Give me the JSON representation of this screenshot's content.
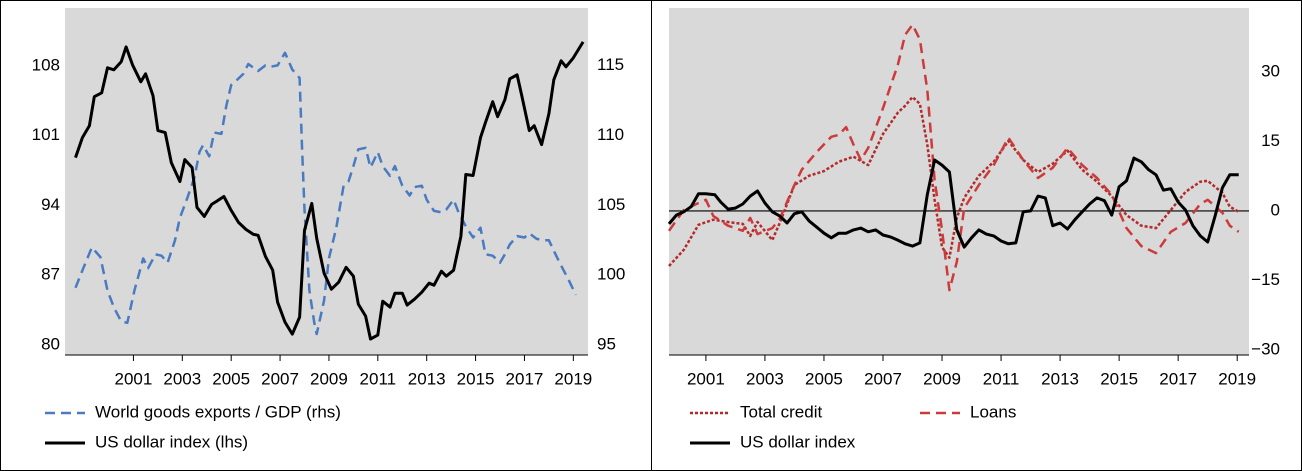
{
  "chart_data": [
    {
      "type": "line",
      "legend": "bottom",
      "background": "#d9d9d9",
      "xlim": [
        1998.2,
        2019.6
      ],
      "xticks": [
        2001,
        2003,
        2005,
        2007,
        2009,
        2011,
        2013,
        2015,
        2017,
        2019
      ],
      "ylim": [
        79,
        113.8
      ],
      "yticks": [
        80,
        87,
        94,
        101,
        108
      ],
      "y2lim": [
        94.3,
        119.1
      ],
      "y2ticks": [
        95,
        100,
        105,
        110,
        115
      ],
      "series": [
        {
          "name": "World goods exports / GDP (rhs)",
          "color": "#4a7bc1",
          "dash": "dashed",
          "axis": "y2",
          "x": [
            1998.63,
            1998.95,
            1999.3,
            1999.65,
            1999.94,
            2000.2,
            2000.5,
            2000.75,
            2001.04,
            2001.4,
            2001.6,
            2001.9,
            2002.15,
            2002.4,
            2002.7,
            2002.9,
            2003.2,
            2003.5,
            2003.7,
            2003.85,
            2004.1,
            2004.3,
            2004.6,
            2004.8,
            2005.0,
            2005.2,
            2005.5,
            2005.7,
            2006.1,
            2006.4,
            2006.6,
            2006.9,
            2007.2,
            2007.5,
            2007.8,
            2007.9,
            2008.0,
            2008.2,
            2008.4,
            2008.5,
            2008.8,
            2009.0,
            2009.3,
            2009.6,
            2009.8,
            2010.0,
            2010.2,
            2010.5,
            2010.7,
            2011.0,
            2011.2,
            2011.5,
            2011.7,
            2012.0,
            2012.3,
            2012.5,
            2012.8,
            2013.0,
            2013.3,
            2013.6,
            2013.8,
            2014.1,
            2014.3,
            2014.6,
            2014.9,
            2015.2,
            2015.4,
            2015.7,
            2016.0,
            2016.2,
            2016.4,
            2016.7,
            2017.0,
            2017.2,
            2017.5,
            2017.8,
            2018.0,
            2018.3,
            2018.5,
            2018.8,
            2019.1
          ],
          "values": [
            99.1,
            100.5,
            102,
            101.3,
            98.9,
            97.7,
            96.7,
            96.6,
            98.9,
            101.2,
            100.5,
            101.5,
            101.4,
            100.9,
            102.5,
            104.1,
            105.5,
            107,
            108.8,
            109.3,
            108.5,
            110.2,
            110.1,
            112.1,
            113.6,
            113.9,
            114.4,
            115.1,
            114.6,
            115,
            114.9,
            115,
            115.9,
            114.7,
            114.1,
            109,
            104.7,
            98.9,
            96.6,
            95.8,
            98.2,
            101.2,
            103.4,
            106.4,
            106.7,
            107.8,
            109,
            109.1,
            107.7,
            108.8,
            107.8,
            107.1,
            107.8,
            106.4,
            105.7,
            106.3,
            106.4,
            105.4,
            104.6,
            104.5,
            104.7,
            105.4,
            104.5,
            103.5,
            102.7,
            103.4,
            101.5,
            101.4,
            100.9,
            101.5,
            102.2,
            102.8,
            102.7,
            103,
            102.6,
            102.5,
            102.5,
            101.4,
            100.7,
            99.7,
            98.6
          ]
        },
        {
          "name": "US dollar index (lhs)",
          "color": "#000000",
          "dash": "solid",
          "x": [
            1998.63,
            1998.91,
            1999.2,
            1999.4,
            1999.7,
            1999.94,
            2000.2,
            2000.5,
            2000.7,
            2000.96,
            2001.3,
            2001.5,
            2001.8,
            2002.0,
            2002.3,
            2002.55,
            2002.9,
            2003.1,
            2003.4,
            2003.6,
            2003.9,
            2004.2,
            2004.4,
            2004.7,
            2005.0,
            2005.3,
            2005.6,
            2005.9,
            2006.1,
            2006.4,
            2006.7,
            2006.9,
            2007.2,
            2007.5,
            2007.8,
            2008.0,
            2008.3,
            2008.5,
            2008.8,
            2009.1,
            2009.4,
            2009.7,
            2010.0,
            2010.2,
            2010.5,
            2010.7,
            2011.0,
            2011.2,
            2011.5,
            2011.7,
            2012.0,
            2012.2,
            2012.5,
            2012.8,
            2013.1,
            2013.3,
            2013.6,
            2013.8,
            2014.1,
            2014.4,
            2014.6,
            2014.9,
            2015.2,
            2015.4,
            2015.7,
            2015.9,
            2016.2,
            2016.4,
            2016.7,
            2016.9,
            2017.2,
            2017.4,
            2017.7,
            2018.0,
            2018.2,
            2018.5,
            2018.7,
            2019.0,
            2019.4
          ],
          "values": [
            98.8,
            100.8,
            102,
            104.9,
            105.3,
            107.8,
            107.6,
            108.4,
            109.9,
            108.1,
            106.4,
            107.2,
            105,
            101.5,
            101.3,
            98.3,
            96.4,
            98.6,
            97.8,
            93.8,
            92.9,
            94.1,
            94.4,
            94.9,
            93.5,
            92.3,
            91.6,
            91.1,
            91,
            88.9,
            87.5,
            84.3,
            82.3,
            81.1,
            82.8,
            91.5,
            94.2,
            90.7,
            87.2,
            85.6,
            86.3,
            87.8,
            86.9,
            84.1,
            82.9,
            80.6,
            81,
            84.4,
            83.8,
            85.2,
            85.2,
            84,
            84.6,
            85.3,
            86.2,
            86,
            87.4,
            86.9,
            87.5,
            90.9,
            97.1,
            97,
            100.8,
            102.3,
            104.4,
            102.9,
            104.6,
            106.7,
            107.1,
            104.9,
            101.5,
            102,
            100.1,
            103.2,
            106.6,
            108.5,
            107.9,
            108.8,
            110.4
          ]
        }
      ]
    },
    {
      "type": "line",
      "legend": "bottom",
      "background": "#d9d9d9",
      "y_axis_side": "right",
      "zero_line": true,
      "xlim": [
        1999.75,
        2019.4
      ],
      "xticks": [
        2001,
        2003,
        2005,
        2007,
        2009,
        2011,
        2013,
        2015,
        2017,
        2019
      ],
      "ylim": [
        -31.1,
        43.8
      ],
      "yticks": [
        {
          "value": -30,
          "label": "−30"
        },
        {
          "value": -15,
          "label": "−15"
        },
        0,
        15,
        30
      ],
      "series": [
        {
          "name": "Total credit",
          "color": "#b22a2a",
          "dash": "dotted",
          "x": [
            1999.75,
            2000.25,
            2000.75,
            2001.25,
            2001.75,
            2002.25,
            2002.5,
            2002.75,
            2003.25,
            2003.5,
            2004.0,
            2004.5,
            2005.0,
            2005.5,
            2006.0,
            2006.5,
            2007.0,
            2007.5,
            2007.75,
            2008.0,
            2008.25,
            2008.5,
            2008.75,
            2009.0,
            2009.25,
            2009.5,
            2009.75,
            2010.25,
            2010.75,
            2011.25,
            2011.75,
            2012.25,
            2012.75,
            2013.25,
            2013.75,
            2014.25,
            2014.75,
            2015.25,
            2015.75,
            2016.25,
            2016.75,
            2017.25,
            2017.75,
            2018.0,
            2018.5,
            2018.75,
            2019.05
          ],
          "values": [
            -11.9,
            -8.4,
            -3,
            -1.9,
            -2.4,
            -2.8,
            -5.4,
            -2.4,
            -6.3,
            -2.6,
            5.6,
            7.6,
            8.6,
            10.6,
            11.7,
            9.9,
            16.6,
            21.2,
            22.7,
            24.6,
            23.1,
            14.3,
            2.4,
            -7.8,
            -10.1,
            -1.5,
            2.8,
            7.6,
            10.6,
            15.1,
            11,
            8.4,
            10.2,
            13,
            8.9,
            6.3,
            3.2,
            -0.9,
            -3.2,
            -3.7,
            0.2,
            4.1,
            6.3,
            6.5,
            3.9,
            0.9,
            -0.2
          ]
        },
        {
          "name": "Loans",
          "color": "#cc3b3b",
          "dash": "dashed",
          "x": [
            1999.75,
            2000.25,
            2000.75,
            2001.0,
            2001.25,
            2001.75,
            2002.25,
            2002.5,
            2002.75,
            2003.25,
            2003.5,
            2004.0,
            2004.25,
            2004.75,
            2005.25,
            2005.5,
            2005.75,
            2006.0,
            2006.25,
            2006.5,
            2007.0,
            2007.5,
            2007.75,
            2008.0,
            2008.25,
            2008.5,
            2008.75,
            2009.0,
            2009.25,
            2009.5,
            2009.75,
            2010.25,
            2010.75,
            2011.25,
            2011.75,
            2012.25,
            2012.75,
            2013.25,
            2013.75,
            2014.25,
            2014.75,
            2015.25,
            2015.75,
            2016.25,
            2016.75,
            2017.25,
            2017.75,
            2018.0,
            2018.5,
            2018.75,
            2019.05
          ],
          "values": [
            -4.3,
            0.2,
            1.7,
            2.4,
            -1.1,
            -3.2,
            -4.3,
            -1.5,
            -5,
            -3.7,
            -1.7,
            5.6,
            8.9,
            12.7,
            16,
            16.4,
            18.1,
            14.3,
            11,
            13.6,
            22.2,
            31.5,
            38,
            40.2,
            37,
            26.1,
            6.7,
            -4.1,
            -17.1,
            -11,
            0.6,
            5.6,
            9.9,
            15.8,
            11,
            7.1,
            9.3,
            13.6,
            9.9,
            7.1,
            3.5,
            -3.7,
            -7.6,
            -9.1,
            -4.5,
            -2.6,
            1.5,
            2.4,
            -0.4,
            -3.2,
            -4.5
          ]
        },
        {
          "name": "US dollar index",
          "color": "#000000",
          "dash": "solid",
          "x": [
            1999.75,
            2000.0,
            2000.25,
            2000.5,
            2000.75,
            2001.0,
            2001.3,
            2001.5,
            2001.75,
            2002.0,
            2002.25,
            2002.5,
            2002.75,
            2003.0,
            2003.25,
            2003.5,
            2003.75,
            2004.0,
            2004.25,
            2004.5,
            2004.75,
            2005.0,
            2005.25,
            2005.5,
            2005.75,
            2006.0,
            2006.25,
            2006.5,
            2006.75,
            2007.0,
            2007.25,
            2007.5,
            2007.75,
            2008.0,
            2008.25,
            2008.5,
            2008.75,
            2009.0,
            2009.25,
            2009.5,
            2009.75,
            2010.0,
            2010.25,
            2010.5,
            2010.75,
            2011.0,
            2011.25,
            2011.5,
            2011.75,
            2012.0,
            2012.25,
            2012.5,
            2012.75,
            2013.0,
            2013.25,
            2013.5,
            2013.75,
            2014.0,
            2014.25,
            2014.5,
            2014.75,
            2015.0,
            2015.25,
            2015.5,
            2015.75,
            2016.0,
            2016.25,
            2016.5,
            2016.75,
            2017.0,
            2017.25,
            2017.5,
            2017.75,
            2018.0,
            2018.25,
            2018.5,
            2018.75,
            2019.05
          ],
          "values": [
            -2.8,
            -0.9,
            -0.2,
            0.9,
            3.7,
            3.7,
            3.5,
            1.9,
            0.4,
            0.6,
            1.5,
            3.2,
            4.3,
            1.7,
            -0.2,
            -1.1,
            -2.6,
            -0.6,
            -0.2,
            -2.2,
            -3.5,
            -4.8,
            -5.8,
            -4.8,
            -4.8,
            -4.1,
            -3.7,
            -4.5,
            -4.1,
            -5.2,
            -5.6,
            -6.3,
            -7.1,
            -7.6,
            -6.9,
            3.5,
            11,
            9.9,
            8.4,
            -4.1,
            -7.8,
            -5.8,
            -4.1,
            -5,
            -5.4,
            -6.5,
            -7.1,
            -6.9,
            -0.2,
            0,
            3.2,
            2.8,
            -3.2,
            -2.6,
            -3.9,
            -1.9,
            -0.2,
            1.5,
            2.8,
            2.2,
            -0.9,
            5.2,
            6.5,
            11.4,
            10.6,
            8.9,
            7.8,
            4.5,
            4.8,
            1.9,
            0.2,
            -3.2,
            -5.4,
            -6.7,
            -1.1,
            5,
            7.8,
            7.8
          ]
        }
      ]
    }
  ]
}
